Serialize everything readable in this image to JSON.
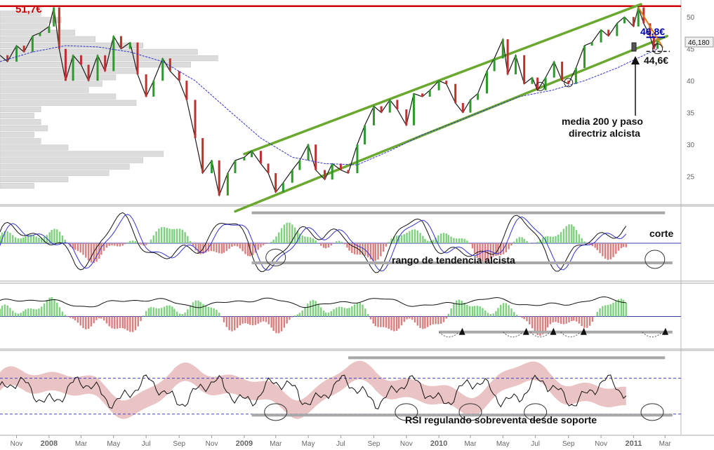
{
  "chart_data": {
    "type": "line",
    "x_start": "2007-10-01",
    "x_end": "2011-03-31",
    "x_ticks": [
      {
        "date": "2007-11-01",
        "label": "Nov",
        "bold": false
      },
      {
        "date": "2008-01-01",
        "label": "2008",
        "bold": true
      },
      {
        "date": "2008-03-01",
        "label": "Mar",
        "bold": false
      },
      {
        "date": "2008-05-01",
        "label": "May",
        "bold": false
      },
      {
        "date": "2008-07-01",
        "label": "Jul",
        "bold": false
      },
      {
        "date": "2008-09-01",
        "label": "Sep",
        "bold": false
      },
      {
        "date": "2008-11-01",
        "label": "Nov",
        "bold": false
      },
      {
        "date": "2009-01-01",
        "label": "2009",
        "bold": true
      },
      {
        "date": "2009-03-01",
        "label": "Mar",
        "bold": false
      },
      {
        "date": "2009-05-01",
        "label": "May",
        "bold": false
      },
      {
        "date": "2009-07-01",
        "label": "Jul",
        "bold": false
      },
      {
        "date": "2009-09-01",
        "label": "Sep",
        "bold": false
      },
      {
        "date": "2009-11-01",
        "label": "Nov",
        "bold": false
      },
      {
        "date": "2010-01-01",
        "label": "2010",
        "bold": true
      },
      {
        "date": "2010-03-01",
        "label": "Mar",
        "bold": false
      },
      {
        "date": "2010-05-01",
        "label": "May",
        "bold": false
      },
      {
        "date": "2010-07-01",
        "label": "Jul",
        "bold": false
      },
      {
        "date": "2010-09-01",
        "label": "Sep",
        "bold": false
      },
      {
        "date": "2010-11-01",
        "label": "Nov",
        "bold": false
      },
      {
        "date": "2011-01-01",
        "label": "2011",
        "bold": true
      },
      {
        "date": "2011-03-01",
        "label": "Mar",
        "bold": false
      }
    ],
    "price": {
      "ylim": [
        21,
        52
      ],
      "y_ticks": [
        25,
        30,
        35,
        40,
        45,
        50
      ],
      "grid": false,
      "series": [
        {
          "name": "precio",
          "color": "#1a1a1a",
          "points": [
            [
              "2007-10-01",
              44.0
            ],
            [
              "2007-10-15",
              43.0
            ],
            [
              "2007-11-01",
              45.5
            ],
            [
              "2007-11-15",
              44.5
            ],
            [
              "2007-12-01",
              47.0
            ],
            [
              "2007-12-15",
              47.5
            ],
            [
              "2008-01-01",
              48.5
            ],
            [
              "2008-01-10",
              51.5
            ],
            [
              "2008-01-20",
              45.0
            ],
            [
              "2008-02-01",
              40.0
            ],
            [
              "2008-02-15",
              44.0
            ],
            [
              "2008-03-01",
              42.5
            ],
            [
              "2008-03-15",
              40.0
            ],
            [
              "2008-04-01",
              44.0
            ],
            [
              "2008-04-15",
              41.5
            ],
            [
              "2008-05-01",
              47.0
            ],
            [
              "2008-05-15",
              45.0
            ],
            [
              "2008-06-01",
              46.0
            ],
            [
              "2008-06-15",
              41.0
            ],
            [
              "2008-07-01",
              37.5
            ],
            [
              "2008-07-15",
              40.0
            ],
            [
              "2008-08-01",
              43.5
            ],
            [
              "2008-08-15",
              41.5
            ],
            [
              "2008-09-01",
              40.0
            ],
            [
              "2008-09-15",
              37.0
            ],
            [
              "2008-10-01",
              31.0
            ],
            [
              "2008-10-15",
              25.5
            ],
            [
              "2008-11-01",
              27.5
            ],
            [
              "2008-11-15",
              22.0
            ],
            [
              "2008-12-01",
              25.5
            ],
            [
              "2008-12-15",
              27.5
            ],
            [
              "2009-01-01",
              28.0
            ],
            [
              "2009-01-15",
              29.0
            ],
            [
              "2009-02-01",
              27.0
            ],
            [
              "2009-02-15",
              25.5
            ],
            [
              "2009-03-01",
              22.5
            ],
            [
              "2009-03-15",
              24.0
            ],
            [
              "2009-04-01",
              26.0
            ],
            [
              "2009-04-15",
              27.5
            ],
            [
              "2009-05-01",
              30.0
            ],
            [
              "2009-05-15",
              26.0
            ],
            [
              "2009-06-01",
              24.5
            ],
            [
              "2009-06-15",
              27.0
            ],
            [
              "2009-07-01",
              26.0
            ],
            [
              "2009-07-15",
              25.5
            ],
            [
              "2009-08-01",
              30.0
            ],
            [
              "2009-08-15",
              33.0
            ],
            [
              "2009-09-01",
              36.0
            ],
            [
              "2009-09-15",
              35.0
            ],
            [
              "2009-10-01",
              37.0
            ],
            [
              "2009-10-15",
              35.5
            ],
            [
              "2009-11-01",
              33.0
            ],
            [
              "2009-11-15",
              38.0
            ],
            [
              "2009-12-01",
              37.5
            ],
            [
              "2009-12-15",
              38.5
            ],
            [
              "2010-01-01",
              40.0
            ],
            [
              "2010-01-15",
              39.5
            ],
            [
              "2010-02-01",
              36.5
            ],
            [
              "2010-02-15",
              35.0
            ],
            [
              "2010-03-01",
              37.0
            ],
            [
              "2010-03-15",
              38.0
            ],
            [
              "2010-04-01",
              41.5
            ],
            [
              "2010-04-15",
              43.5
            ],
            [
              "2010-05-01",
              46.5
            ],
            [
              "2010-05-10",
              41.0
            ],
            [
              "2010-05-25",
              44.0
            ],
            [
              "2010-06-10",
              39.5
            ],
            [
              "2010-06-25",
              40.5
            ],
            [
              "2010-07-05",
              38.5
            ],
            [
              "2010-07-20",
              40.5
            ],
            [
              "2010-08-05",
              43.0
            ],
            [
              "2010-08-20",
              40.0
            ],
            [
              "2010-09-01",
              39.5
            ],
            [
              "2010-09-15",
              42.0
            ],
            [
              "2010-10-01",
              45.5
            ],
            [
              "2010-10-15",
              46.0
            ],
            [
              "2010-11-01",
              48.0
            ],
            [
              "2010-11-15",
              47.0
            ],
            [
              "2010-12-01",
              49.0
            ],
            [
              "2010-12-15",
              50.0
            ],
            [
              "2011-01-01",
              48.5
            ],
            [
              "2011-01-10",
              51.5
            ],
            [
              "2011-01-20",
              49.0
            ],
            [
              "2011-02-01",
              47.0
            ],
            [
              "2011-02-08",
              45.0
            ],
            [
              "2011-02-15",
              46.18
            ]
          ]
        },
        {
          "name": "media 200",
          "color": "#3333cc",
          "points": [
            [
              "2007-10-01",
              43.0
            ],
            [
              "2007-12-01",
              44.5
            ],
            [
              "2008-02-01",
              45.5
            ],
            [
              "2008-04-01",
              45.3
            ],
            [
              "2008-06-01",
              44.5
            ],
            [
              "2008-08-01",
              43.0
            ],
            [
              "2008-10-01",
              40.0
            ],
            [
              "2008-12-01",
              35.5
            ],
            [
              "2009-02-01",
              31.0
            ],
            [
              "2009-04-01",
              28.0
            ],
            [
              "2009-06-01",
              27.0
            ],
            [
              "2009-08-01",
              26.8
            ],
            [
              "2009-10-01",
              29.0
            ],
            [
              "2009-12-01",
              31.5
            ],
            [
              "2010-02-01",
              33.5
            ],
            [
              "2010-04-01",
              35.5
            ],
            [
              "2010-06-01",
              37.5
            ],
            [
              "2010-08-01",
              38.5
            ],
            [
              "2010-10-01",
              40.0
            ],
            [
              "2010-12-01",
              42.0
            ],
            [
              "2011-02-15",
              45.0
            ]
          ]
        }
      ],
      "channel": [
        {
          "from": [
            "2009-01-01",
            28.5
          ],
          "to": [
            "2011-01-15",
            52.0
          ]
        },
        {
          "from": [
            "2008-12-15",
            19.5
          ],
          "to": [
            "2011-03-05",
            47.0
          ]
        }
      ],
      "resistance_level": 51.7,
      "current_price": 46.18,
      "volume_profile": [
        {
          "y": 50.5,
          "len": 0.06
        },
        {
          "y": 49.5,
          "len": 0.09
        },
        {
          "y": 48.5,
          "len": 0.07
        },
        {
          "y": 47.5,
          "len": 0.11
        },
        {
          "y": 46.5,
          "len": 0.14
        },
        {
          "y": 45.5,
          "len": 0.21
        },
        {
          "y": 44.5,
          "len": 0.29
        },
        {
          "y": 43.5,
          "len": 0.32
        },
        {
          "y": 42.5,
          "len": 0.28
        },
        {
          "y": 41.5,
          "len": 0.2
        },
        {
          "y": 40.5,
          "len": 0.17
        },
        {
          "y": 39.5,
          "len": 0.15
        },
        {
          "y": 38.5,
          "len": 0.13
        },
        {
          "y": 37.5,
          "len": 0.17
        },
        {
          "y": 36.5,
          "len": 0.2
        },
        {
          "y": 35.5,
          "len": 0.06
        },
        {
          "y": 34.5,
          "len": 0.05
        },
        {
          "y": 33.5,
          "len": 0.06
        },
        {
          "y": 32.5,
          "len": 0.07
        },
        {
          "y": 31.5,
          "len": 0.05
        },
        {
          "y": 30.5,
          "len": 0.06
        },
        {
          "y": 29.5,
          "len": 0.1
        },
        {
          "y": 28.5,
          "len": 0.24
        },
        {
          "y": 27.5,
          "len": 0.21
        },
        {
          "y": 26.5,
          "len": 0.19
        },
        {
          "y": 25.5,
          "len": 0.16
        },
        {
          "y": 24.5,
          "len": 0.1
        },
        {
          "y": 23.5,
          "len": 0.05
        }
      ]
    },
    "oscillator1": {
      "ylim": [
        -1,
        1
      ],
      "zero_line": 0,
      "range_lines": [
        {
          "from": "2009-01-15",
          "to": "2011-03-01",
          "y": 0.85
        },
        {
          "from": "2009-01-15",
          "to": "2011-03-15",
          "y": -0.55
        }
      ]
    },
    "oscillator2": {
      "ylim": [
        -1,
        1
      ],
      "zero_line": 0,
      "support_line": {
        "from": "2010-01-01",
        "to": "2011-03-15",
        "y": -0.5
      }
    },
    "rsi": {
      "ylim": [
        10,
        90
      ],
      "upper_dashed": 65,
      "lower_dashed": 30,
      "top_line": {
        "from": "2009-07-15",
        "to": "2011-03-01",
        "y": 85
      },
      "bottom_line": {
        "from": "2009-01-15",
        "to": "2011-03-15",
        "y": 29
      }
    }
  },
  "labels": {
    "resistance": "51,7€",
    "target": "46,8€",
    "support": "44,6€",
    "current_price": "46,180",
    "media_200_line1": "media 200 y paso",
    "media_200_line2": "directriz alcista",
    "corte": "corte",
    "rango": "rango de tendencia alcista",
    "rsi_note": "RSI regulando sobreventa desde soporte"
  },
  "colors": {
    "price": "#1a1a1a",
    "bull_candle": "#2e9a2e",
    "bear_candle": "#c03030",
    "ma200": "#3333cc",
    "channel": "#6aa830",
    "resistance": "#cc0000",
    "target": "#0000aa",
    "target_arrow": "#e07b1a",
    "hist_pos": "#7fd07f",
    "hist_neg": "#d97f7f",
    "zero": "#3b3bb0",
    "range": "#a8a8a8",
    "rsi_band": "#eac4c4",
    "volume_profile": "#dcdcdc"
  }
}
